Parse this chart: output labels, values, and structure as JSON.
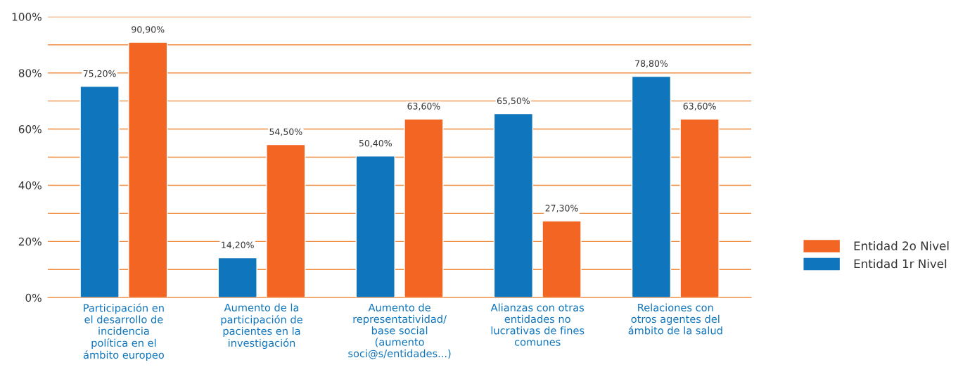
{
  "chart_data": {
    "type": "bar",
    "categories": [
      "Participación en\nel desarrollo de\nincidencia\npolítica en el\námbito europeo",
      "Aumento de la\nparticipación de\npacientes en la\ninvestigación",
      "Aumento de\nrepresentatividad/\nbase social\n(aumento\nsoci@s/entidades...)",
      "Alianzas con otras\nentidades no\nlucrativas de fines\ncomunes",
      "Relaciones con\notros agentes del\námbito de la salud"
    ],
    "series": [
      {
        "name": "Entidad 1r Nivel",
        "color": "#0f75bc",
        "values": [
          75.2,
          14.2,
          50.4,
          65.5,
          78.8
        ],
        "value_labels": [
          "75,20%",
          "14,20%",
          "50,40%",
          "65,50%",
          "78,80%"
        ]
      },
      {
        "name": "Entidad 2o Nivel",
        "color": "#f26522",
        "values": [
          90.9,
          54.5,
          63.6,
          27.3,
          63.6
        ],
        "value_labels": [
          "90,90%",
          "54,50%",
          "63,60%",
          "27,30%",
          "63,60%"
        ]
      }
    ],
    "ylim": [
      0,
      100
    ],
    "yticks": [
      {
        "value": 0,
        "label": "0%"
      },
      {
        "value": 10,
        "label": null
      },
      {
        "value": 20,
        "label": "20%"
      },
      {
        "value": 30,
        "label": null
      },
      {
        "value": 40,
        "label": "40%"
      },
      {
        "value": 50,
        "label": null
      },
      {
        "value": 60,
        "label": "60%"
      },
      {
        "value": 70,
        "label": null
      },
      {
        "value": 80,
        "label": "80%"
      },
      {
        "value": 90,
        "label": null
      },
      {
        "value": 100,
        "label": "100%"
      }
    ],
    "grid": "y",
    "legend": "right"
  }
}
